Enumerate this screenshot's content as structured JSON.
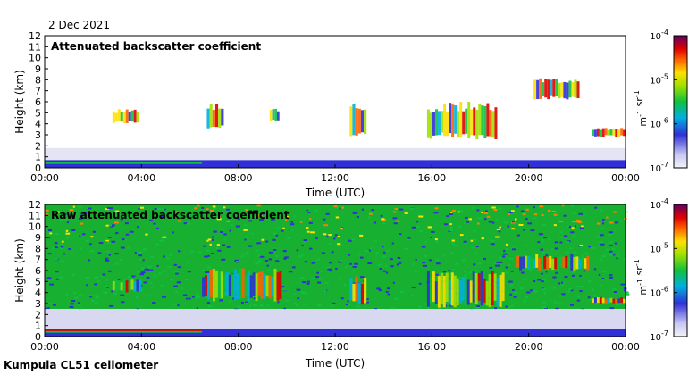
{
  "date": "2 Dec 2021",
  "footer": "Kumpula CL51 ceilometer",
  "colors": {
    "signal_low": "#3030d0",
    "signal_mid": "#20c020",
    "signal_high": "#e02020",
    "background": "#ffffff"
  },
  "chart_data": [
    {
      "type": "heatmap",
      "title": "Attenuated backscatter coefficient",
      "xlabel": "Time (UTC)",
      "ylabel": "Height (km)",
      "xlim": [
        0,
        24
      ],
      "ylim": [
        0,
        12
      ],
      "x_ticks": [
        "00:00",
        "04:00",
        "08:00",
        "12:00",
        "16:00",
        "20:00",
        "00:00"
      ],
      "y_ticks": [
        0,
        1,
        2,
        3,
        4,
        5,
        6,
        7,
        8,
        9,
        10,
        11,
        12
      ],
      "colorbar": {
        "scale": "log",
        "range": [
          1e-07,
          0.0001
        ],
        "tick_labels": [
          "10-4",
          "10-5",
          "10-6",
          "10-7"
        ],
        "label": "m-1 sr-1"
      },
      "features": [
        {
          "desc": "boundary layer",
          "t_start": 0,
          "t_end": 24,
          "h_bottom": 0,
          "h_top": 0.7
        },
        {
          "desc": "cloud",
          "t_start": 2.8,
          "t_end": 3.9,
          "h_bottom": 4.0,
          "h_top": 5.4
        },
        {
          "desc": "cloud",
          "t_start": 6.7,
          "t_end": 7.4,
          "h_bottom": 3.5,
          "h_top": 6.0
        },
        {
          "desc": "cloud",
          "t_start": 9.3,
          "t_end": 9.7,
          "h_bottom": 4.2,
          "h_top": 5.5
        },
        {
          "desc": "cloud",
          "t_start": 12.6,
          "t_end": 13.3,
          "h_bottom": 2.8,
          "h_top": 5.8
        },
        {
          "desc": "cloud",
          "t_start": 15.8,
          "t_end": 18.7,
          "h_bottom": 2.5,
          "h_top": 6.0
        },
        {
          "desc": "cloud",
          "t_start": 20.2,
          "t_end": 22.1,
          "h_bottom": 6.2,
          "h_top": 8.2
        },
        {
          "desc": "cloud",
          "t_start": 22.6,
          "t_end": 24.0,
          "h_bottom": 2.8,
          "h_top": 3.7
        }
      ]
    },
    {
      "type": "heatmap",
      "title": "Raw attenuated backscatter coefficient",
      "xlabel": "Time (UTC)",
      "ylabel": "Height (km)",
      "xlim": [
        0,
        24
      ],
      "ylim": [
        0,
        12
      ],
      "x_ticks": [
        "00:00",
        "04:00",
        "08:00",
        "12:00",
        "16:00",
        "20:00",
        "00:00"
      ],
      "y_ticks": [
        0,
        1,
        2,
        3,
        4,
        5,
        6,
        7,
        8,
        9,
        10,
        11,
        12
      ],
      "colorbar": {
        "scale": "log",
        "range": [
          1e-07,
          0.0001
        ],
        "tick_labels": [
          "10-4",
          "10-5",
          "10-6",
          "10-7"
        ],
        "label": "m-1 sr-1"
      },
      "features": [
        {
          "desc": "noise field",
          "t_start": 0,
          "t_end": 24,
          "h_bottom": 2.5,
          "h_top": 12
        },
        {
          "desc": "boundary layer",
          "t_start": 0,
          "t_end": 24,
          "h_bottom": 0,
          "h_top": 0.7
        },
        {
          "desc": "cloud",
          "t_start": 2.8,
          "t_end": 4.0,
          "h_bottom": 4.0,
          "h_top": 5.3
        },
        {
          "desc": "cloud",
          "t_start": 6.5,
          "t_end": 9.8,
          "h_bottom": 3.2,
          "h_top": 6.2
        },
        {
          "desc": "cloud",
          "t_start": 12.6,
          "t_end": 13.3,
          "h_bottom": 2.8,
          "h_top": 5.5
        },
        {
          "desc": "cloud",
          "t_start": 15.8,
          "t_end": 19.0,
          "h_bottom": 2.6,
          "h_top": 6.0
        },
        {
          "desc": "cloud",
          "t_start": 19.5,
          "t_end": 22.5,
          "h_bottom": 6.0,
          "h_top": 7.5
        },
        {
          "desc": "cloud",
          "t_start": 22.6,
          "t_end": 24.0,
          "h_bottom": 3.0,
          "h_top": 3.6
        }
      ]
    }
  ]
}
